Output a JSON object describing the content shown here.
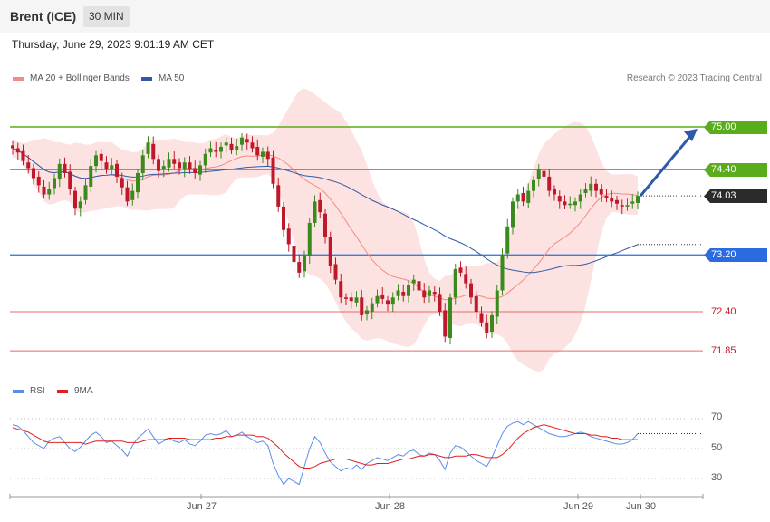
{
  "header": {
    "title": "Brent (ICE)",
    "timeframe": "30 MIN"
  },
  "date_text": "Thursday, June 29, 2023 9:01:19 AM CET",
  "credit": "Research © 2023 Trading Central",
  "legend": {
    "ma20": {
      "label": "MA 20 + Bollinger Bands",
      "color": "#f28b82"
    },
    "ma50": {
      "label": "MA 50",
      "color": "#2f5aa8"
    }
  },
  "rsi_legend": {
    "rsi": {
      "label": "RSI",
      "color": "#5b8de8"
    },
    "ma9": {
      "label": "9MA",
      "color": "#e02020"
    }
  },
  "colors": {
    "up": "#3a8a1e",
    "down": "#c0182b",
    "resistance": "#5aac1c",
    "support": "#2a6be0",
    "support_minor": "#e66a6a",
    "last": "#2b2b2b"
  },
  "levels": [
    {
      "label": "75.00",
      "value": 75.0,
      "kind": "resistance"
    },
    {
      "label": "74.40",
      "value": 74.4,
      "kind": "resistance"
    },
    {
      "label": "74.03",
      "value": 74.03,
      "kind": "last"
    },
    {
      "label": "73.20",
      "value": 73.2,
      "kind": "pivot"
    },
    {
      "label": "72.40",
      "value": 72.4,
      "kind": "support"
    },
    {
      "label": "71.85",
      "value": 71.85,
      "kind": "support"
    }
  ],
  "x_labels": [
    "Jun 27",
    "Jun 28",
    "Jun 29",
    "Jun 30"
  ],
  "rsi_levels": [
    "70",
    "50",
    "30"
  ],
  "chart_data": {
    "type": "candlestick",
    "title": "Brent (ICE)",
    "timeframe": "30 MIN",
    "y_range": [
      71.5,
      75.3
    ],
    "rsi_range": [
      20,
      80
    ],
    "closes": [
      74.7,
      74.64,
      74.52,
      74.42,
      74.28,
      74.18,
      74.05,
      74.12,
      74.28,
      74.48,
      74.35,
      74.12,
      73.85,
      73.95,
      74.18,
      74.45,
      74.6,
      74.52,
      74.4,
      74.46,
      74.3,
      74.15,
      73.95,
      74.1,
      74.35,
      74.6,
      74.78,
      74.55,
      74.38,
      74.45,
      74.55,
      74.48,
      74.42,
      74.5,
      74.4,
      74.35,
      74.46,
      74.62,
      74.7,
      74.65,
      74.72,
      74.78,
      74.68,
      74.73,
      74.85,
      74.78,
      74.7,
      74.6,
      74.65,
      74.55,
      74.2,
      73.88,
      73.55,
      73.35,
      73.1,
      72.95,
      73.2,
      73.65,
      73.95,
      73.8,
      73.45,
      73.05,
      72.85,
      72.6,
      72.58,
      72.55,
      72.6,
      72.35,
      72.42,
      72.52,
      72.62,
      72.58,
      72.5,
      72.6,
      72.7,
      72.62,
      72.78,
      72.85,
      72.7,
      72.6,
      72.7,
      72.65,
      72.4,
      72.05,
      72.6,
      73.0,
      72.95,
      72.8,
      72.6,
      72.4,
      72.25,
      72.1,
      72.35,
      72.7,
      73.2,
      73.6,
      73.95,
      74.05,
      73.95,
      74.1,
      74.25,
      74.4,
      74.3,
      74.1,
      74.05,
      73.95,
      73.9,
      73.92,
      73.95,
      74.05,
      74.12,
      74.2,
      74.1,
      74.05,
      74.0,
      73.95,
      73.92,
      73.88,
      73.9,
      73.95,
      74.03
    ],
    "rsi": [
      66,
      65,
      62,
      58,
      54,
      52,
      50,
      55,
      57,
      58,
      54,
      50,
      48,
      51,
      55,
      59,
      61,
      58,
      54,
      55,
      52,
      49,
      45,
      52,
      57,
      60,
      63,
      58,
      53,
      55,
      57,
      55,
      54,
      56,
      53,
      52,
      55,
      59,
      60,
      59,
      60,
      62,
      58,
      59,
      61,
      58,
      56,
      54,
      55,
      52,
      40,
      32,
      26,
      30,
      28,
      26,
      38,
      50,
      58,
      54,
      47,
      41,
      38,
      35,
      37,
      36,
      39,
      36,
      40,
      42,
      44,
      43,
      42,
      44,
      46,
      45,
      48,
      49,
      46,
      45,
      47,
      46,
      42,
      36,
      47,
      52,
      51,
      48,
      45,
      42,
      40,
      38,
      44,
      52,
      60,
      65,
      67,
      68,
      66,
      68,
      66,
      64,
      62,
      60,
      59,
      58,
      58,
      59,
      60,
      61,
      60,
      58,
      57,
      56,
      55,
      54,
      53,
      53,
      54,
      56,
      60
    ],
    "rsi_ma9": [
      64,
      63,
      62,
      61,
      59,
      57,
      55,
      54,
      54,
      54,
      54,
      54,
      54,
      54,
      53,
      54,
      55,
      55,
      55,
      55,
      55,
      55,
      54,
      54,
      54,
      55,
      56,
      56,
      56,
      56,
      57,
      57,
      57,
      57,
      56,
      56,
      56,
      56,
      56,
      57,
      57,
      58,
      58,
      59,
      59,
      59,
      59,
      58,
      58,
      57,
      54,
      51,
      47,
      44,
      41,
      38,
      37,
      37,
      38,
      40,
      41,
      42,
      43,
      43,
      43,
      42,
      41,
      40,
      39,
      39,
      40,
      40,
      40,
      41,
      42,
      43,
      43,
      44,
      45,
      45,
      46,
      46,
      45,
      44,
      44,
      45,
      45,
      45,
      46,
      46,
      45,
      44,
      44,
      44,
      46,
      49,
      53,
      57,
      60,
      62,
      64,
      65,
      66,
      65,
      64,
      63,
      62,
      61,
      60,
      60,
      60,
      59,
      59,
      58,
      58,
      57,
      57,
      56,
      56,
      56,
      56
    ],
    "target_arrow": {
      "from": 74.03,
      "to": 75.0
    }
  }
}
